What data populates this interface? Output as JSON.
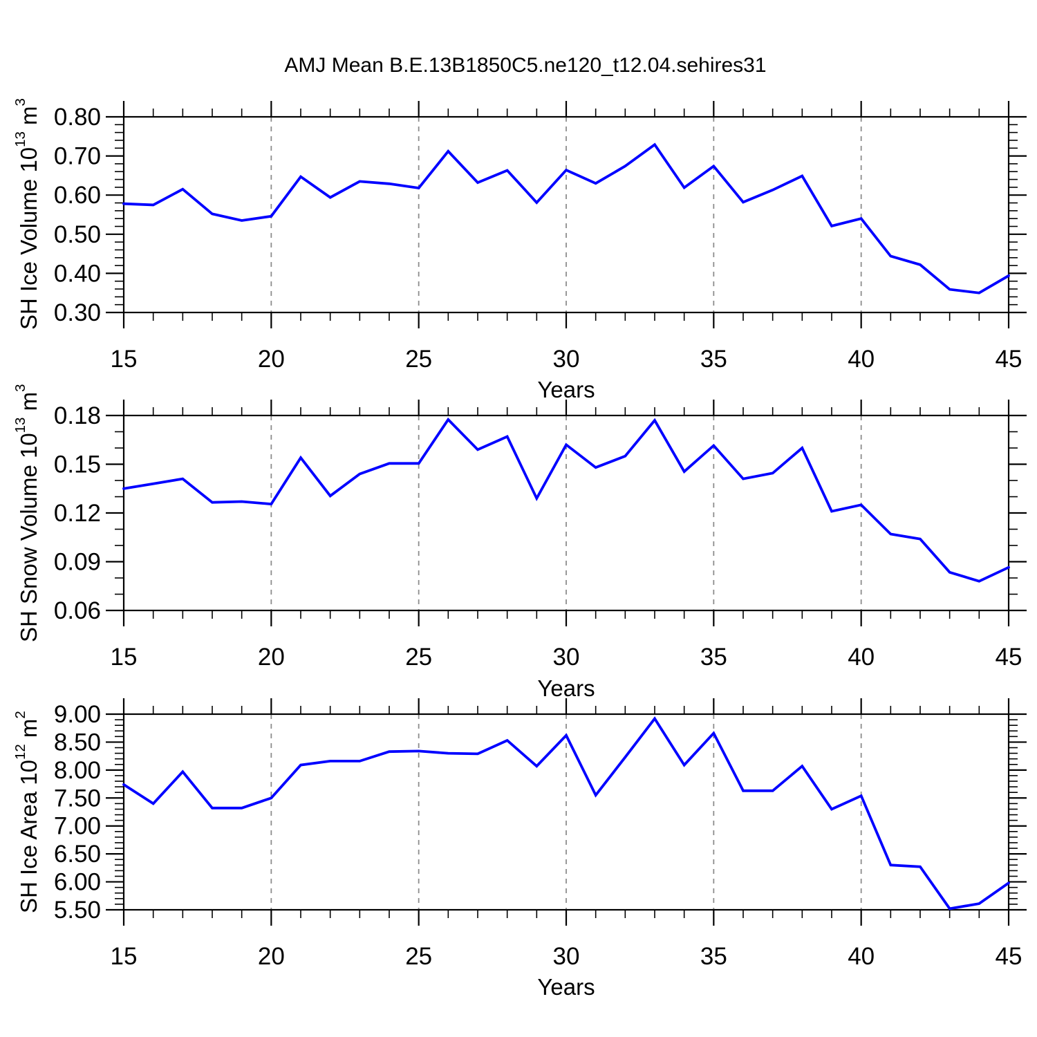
{
  "title": "AMJ Mean B.E.13B1850C5.ne120_t12.04.sehires31",
  "colors": {
    "line": "#0000ff",
    "axis": "#000000",
    "grid": "#8c8c8c",
    "background": "#ffffff"
  },
  "chart_data": [
    {
      "type": "line",
      "panel": 1,
      "ylabel": "SH Ice Volume 10^13 m^3",
      "ylabel_parts": {
        "base": "SH Ice Volume 10",
        "exp": "13",
        "unit": " m",
        "unit_exp": "3"
      },
      "xlabel": "Years",
      "xlim": [
        15,
        45
      ],
      "ylim": [
        0.3,
        0.8
      ],
      "xticks": [
        15,
        20,
        25,
        30,
        35,
        40,
        45
      ],
      "grid_x": [
        20,
        25,
        30,
        35,
        40
      ],
      "ytick_step": 0.1,
      "yminor_step": 0.02,
      "ytick_labels": [
        "0.80",
        "0.70",
        "0.60",
        "0.50",
        "0.40",
        "0.30"
      ],
      "x": [
        15,
        16,
        17,
        18,
        19,
        20,
        21,
        22,
        23,
        24,
        25,
        26,
        27,
        28,
        29,
        30,
        31,
        32,
        33,
        34,
        35,
        36,
        37,
        38,
        39,
        40,
        41,
        42,
        43,
        44,
        45
      ],
      "values": [
        0.578,
        0.575,
        0.615,
        0.552,
        0.535,
        0.546,
        0.647,
        0.594,
        0.635,
        0.629,
        0.618,
        0.712,
        0.632,
        0.663,
        0.581,
        0.664,
        0.63,
        0.674,
        0.729,
        0.619,
        0.674,
        0.582,
        0.613,
        0.649,
        0.521,
        0.54,
        0.444,
        0.422,
        0.359,
        0.35,
        0.394
      ]
    },
    {
      "type": "line",
      "panel": 2,
      "ylabel": "SH Snow Volume 10^13 m^3",
      "ylabel_parts": {
        "base": "SH Snow Volume 10",
        "exp": "13",
        "unit": " m",
        "unit_exp": "3"
      },
      "xlabel": "Years",
      "xlim": [
        15,
        45
      ],
      "ylim": [
        0.06,
        0.18
      ],
      "xticks": [
        15,
        20,
        25,
        30,
        35,
        40,
        45
      ],
      "grid_x": [
        20,
        25,
        30,
        35,
        40
      ],
      "ytick_step": 0.03,
      "yminor_step": 0.01,
      "ytick_labels": [
        "0.18",
        "0.15",
        "0.12",
        "0.09",
        "0.06"
      ],
      "x": [
        15,
        16,
        17,
        18,
        19,
        20,
        21,
        22,
        23,
        24,
        25,
        26,
        27,
        28,
        29,
        30,
        31,
        32,
        33,
        34,
        35,
        36,
        37,
        38,
        39,
        40,
        41,
        42,
        43,
        44,
        45
      ],
      "values": [
        0.135,
        0.138,
        0.141,
        0.1265,
        0.127,
        0.1255,
        0.154,
        0.1305,
        0.144,
        0.1505,
        0.1505,
        0.1775,
        0.159,
        0.167,
        0.129,
        0.162,
        0.148,
        0.155,
        0.177,
        0.1455,
        0.1615,
        0.141,
        0.1445,
        0.16,
        0.121,
        0.125,
        0.107,
        0.104,
        0.0835,
        0.078,
        0.0865
      ]
    },
    {
      "type": "line",
      "panel": 3,
      "ylabel": "SH Ice Area 10^12 m^2",
      "ylabel_parts": {
        "base": "SH Ice Area 10",
        "exp": "12",
        "unit": " m",
        "unit_exp": "2"
      },
      "xlabel": "Years",
      "xlim": [
        15,
        45
      ],
      "ylim": [
        5.5,
        9.0
      ],
      "xticks": [
        15,
        20,
        25,
        30,
        35,
        40,
        45
      ],
      "grid_x": [
        20,
        25,
        30,
        35,
        40
      ],
      "ytick_step": 0.5,
      "yminor_step": 0.1,
      "ytick_labels": [
        "9.00",
        "8.50",
        "8.00",
        "7.50",
        "7.00",
        "6.50",
        "6.00",
        "5.50"
      ],
      "x": [
        15,
        16,
        17,
        18,
        19,
        20,
        21,
        22,
        23,
        24,
        25,
        26,
        27,
        28,
        29,
        30,
        31,
        32,
        33,
        34,
        35,
        36,
        37,
        38,
        39,
        40,
        41,
        42,
        43,
        44,
        45
      ],
      "values": [
        7.74,
        7.4,
        7.97,
        7.32,
        7.32,
        7.5,
        8.09,
        8.16,
        8.16,
        8.33,
        8.34,
        8.3,
        8.29,
        8.53,
        8.07,
        8.62,
        7.55,
        8.23,
        8.92,
        8.09,
        8.66,
        7.63,
        7.63,
        8.07,
        7.3,
        7.54,
        6.3,
        6.27,
        5.52,
        5.61,
        5.98
      ]
    }
  ]
}
